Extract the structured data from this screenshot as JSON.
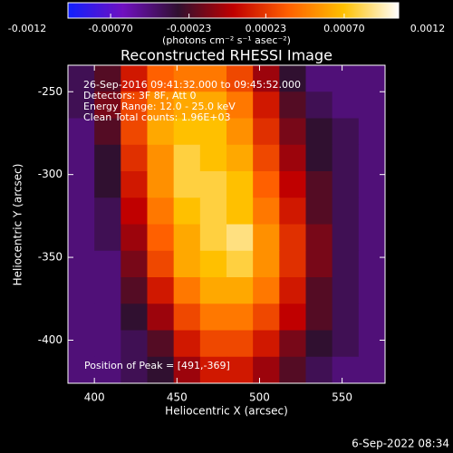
{
  "chart_data": {
    "type": "heatmap",
    "title": "Reconstructed RHESSI Image",
    "xlabel": "Heliocentric X (arcsec)",
    "ylabel": "Heliocentric Y (arcsec)",
    "xlim": [
      384,
      576
    ],
    "ylim": [
      -426,
      -234
    ],
    "xticks": [
      400,
      450,
      500,
      550
    ],
    "yticks": [
      -250,
      -300,
      -350,
      -400
    ],
    "colorbar_label": "(photons cm⁻² s⁻¹ asec⁻²)",
    "clim": [
      -0.0012,
      0.0012
    ],
    "colorbar_ticks": [
      {
        "value": -0.0012,
        "label": "-0.0012"
      },
      {
        "value": -0.0007,
        "label": "-0.00070"
      },
      {
        "value": -0.00023,
        "label": "-0.00023"
      },
      {
        "value": 0.00023,
        "label": "0.00023"
      },
      {
        "value": 0.0007,
        "label": "0.00070"
      },
      {
        "value": 0.0012,
        "label": "0.0012"
      }
    ],
    "colormap": [
      "#1020ff",
      "#7010c0",
      "#301030",
      "#c00000",
      "#ff6000",
      "#ffc000",
      "#ffffff"
    ],
    "annotations": [
      "26-Sep-2016 09:41:32.000 to 09:45:52.000",
      "Detectors: 3F 8F, Att 0",
      "Energy Range: 12.0 - 25.0 keV",
      "Clean     Total counts: 1.96E+03"
    ],
    "peak_label": "Position of Peak = [491,-369]",
    "footer": "6-Sep-2022 08:34",
    "z": [
      [
        -0.0005,
        -0.0003,
        0.0001,
        0.0004,
        0.0005,
        0.0005,
        0.0003,
        -0.0001,
        -0.0004,
        -0.0006,
        -0.0006,
        -0.0006
      ],
      [
        -0.0005,
        -0.0002,
        0.0003,
        0.0006,
        0.0007,
        0.0007,
        0.0005,
        0.0001,
        -0.0003,
        -0.0005,
        -0.0006,
        -0.0006
      ],
      [
        -0.0006,
        -0.0003,
        0.0003,
        0.0007,
        0.0008,
        0.0008,
        0.0006,
        0.0002,
        -0.0002,
        -0.0004,
        -0.0005,
        -0.0006
      ],
      [
        -0.0006,
        -0.0004,
        0.0002,
        0.0006,
        0.0009,
        0.0008,
        0.0007,
        0.0003,
        -0.0001,
        -0.0004,
        -0.0005,
        -0.0006
      ],
      [
        -0.0006,
        -0.0004,
        0.0001,
        0.0006,
        0.0009,
        0.0009,
        0.0008,
        0.0004,
        0,
        -0.0003,
        -0.0005,
        -0.0006
      ],
      [
        -0.0006,
        -0.0005,
        0,
        0.0005,
        0.0008,
        0.0009,
        0.0008,
        0.0005,
        0.0001,
        -0.0003,
        -0.0005,
        -0.0006
      ],
      [
        -0.0006,
        -0.0005,
        -0.0001,
        0.0004,
        0.0007,
        0.0009,
        0.001,
        0.0006,
        0.0002,
        -0.0002,
        -0.0005,
        -0.0006
      ],
      [
        -0.0006,
        -0.0006,
        -0.0002,
        0.0003,
        0.0007,
        0.0008,
        0.0009,
        0.0006,
        0.0002,
        -0.0002,
        -0.0005,
        -0.0006
      ],
      [
        -0.0006,
        -0.0006,
        -0.0003,
        0.0001,
        0.0005,
        0.0007,
        0.0007,
        0.0005,
        0.0001,
        -0.0003,
        -0.0005,
        -0.0006
      ],
      [
        -0.0006,
        -0.0006,
        -0.0004,
        -0.0001,
        0.0003,
        0.0005,
        0.0005,
        0.0003,
        0,
        -0.0003,
        -0.0005,
        -0.0006
      ],
      [
        -0.0006,
        -0.0006,
        -0.0005,
        -0.0003,
        0.0001,
        0.0003,
        0.0003,
        0.0001,
        -0.0002,
        -0.0004,
        -0.0005,
        -0.0006
      ],
      [
        -0.0006,
        -0.0006,
        -0.0005,
        -0.0004,
        -0.0001,
        0.0001,
        0.0001,
        -0.0001,
        -0.0003,
        -0.0005,
        -0.0006,
        -0.0006
      ]
    ]
  }
}
